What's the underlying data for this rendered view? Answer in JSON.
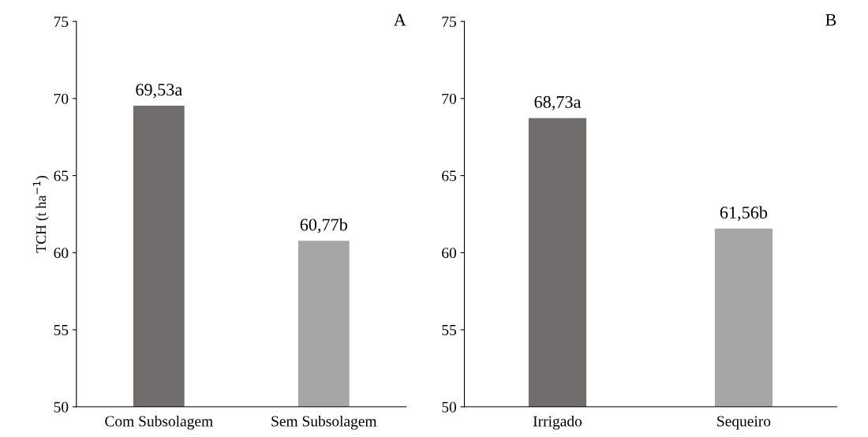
{
  "chart_data": [
    {
      "type": "bar",
      "ylabel": "TCH (t ha$^{−1}$)",
      "categories": [
        "Com Subsolagem",
        "Sem Subsolagem"
      ],
      "values": [
        69.53,
        60.77
      ],
      "colors": [
        "#716d6c",
        "#a6a6a6"
      ],
      "value_labels": [
        "69,53a",
        "60,77b"
      ],
      "ylim": [
        50,
        75
      ],
      "yticks": [
        50,
        55,
        60,
        65,
        70,
        75
      ],
      "grid": false,
      "annotations": [
        "A"
      ]
    },
    {
      "type": "bar",
      "categories": [
        "Irrigado",
        "Sequeiro"
      ],
      "values": [
        68.73,
        61.56
      ],
      "colors": [
        "#716d6c",
        "#a6a6a6"
      ],
      "value_labels": [
        "68,73a",
        "61,56b"
      ],
      "ylim": [
        50,
        75
      ],
      "yticks": [
        50,
        55,
        60,
        65,
        70,
        75
      ],
      "grid": false,
      "annotations": [
        "B"
      ]
    }
  ]
}
